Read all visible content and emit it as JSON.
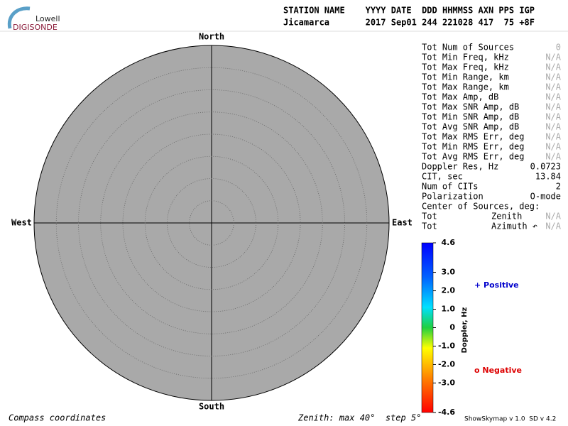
{
  "logo": {
    "top": "Lowell",
    "bottom": "DIGISONDE"
  },
  "header": {
    "columns": "STATION NAME    YYYY DATE  DDD HHMMSS AXN PPS IGP",
    "values": "Jicamarca       2017 Sep01 244 221028 417  75 +8F"
  },
  "plot": {
    "north": "North",
    "south": "South",
    "east": "East",
    "west": "West"
  },
  "stats": {
    "rows": [
      {
        "label": "Tot Num of Sources",
        "value": "0",
        "color": "#aaaaaa"
      },
      {
        "label": "Tot Min Freq, kHz",
        "value": "N/A",
        "color": "#aaaaaa"
      },
      {
        "label": "Tot Max Freq, kHz",
        "value": "N/A",
        "color": "#aaaaaa"
      },
      {
        "label": "Tot Min Range, km",
        "value": "N/A",
        "color": "#aaaaaa"
      },
      {
        "label": "Tot Max Range, km",
        "value": "N/A",
        "color": "#aaaaaa"
      },
      {
        "label": "Tot Max Amp, dB",
        "value": "N/A",
        "color": "#aaaaaa"
      },
      {
        "label": "Tot Max SNR Amp, dB",
        "value": "N/A",
        "color": "#aaaaaa"
      },
      {
        "label": "Tot Min SNR Amp, dB",
        "value": "N/A",
        "color": "#aaaaaa"
      },
      {
        "label": "Tot Avg SNR Amp, dB",
        "value": "N/A",
        "color": "#aaaaaa"
      },
      {
        "label": "Tot Max RMS Err, deg",
        "value": "N/A",
        "color": "#aaaaaa"
      },
      {
        "label": "Tot Min RMS Err, deg",
        "value": "N/A",
        "color": "#aaaaaa"
      },
      {
        "label": "Tot Avg RMS Err, deg",
        "value": "N/A",
        "color": "#aaaaaa"
      },
      {
        "label": "Doppler Res, Hz",
        "value": "0.0723",
        "color": "#000000"
      },
      {
        "label": "CIT, sec",
        "value": "13.84",
        "color": "#000000"
      },
      {
        "label": "Num of CITs",
        "value": "2",
        "color": "#000000"
      },
      {
        "label": "Polarization",
        "value": "O-mode",
        "color": "#000000"
      }
    ],
    "center_title": "Center of Sources, deg:",
    "center_rows": [
      {
        "label": "Tot",
        "name": "Zenith",
        "value": "N/A",
        "color": "#aaaaaa"
      },
      {
        "label": "Tot",
        "name": "Azimuth ↶",
        "value": "N/A",
        "color": "#aaaaaa"
      }
    ]
  },
  "colorbar": {
    "title": "Doppler, Hz",
    "range": [
      -4.6,
      4.6
    ],
    "ticks": [
      {
        "value": 4.6,
        "label": "4.6"
      },
      {
        "value": 3,
        "label": "3.0"
      },
      {
        "value": 2,
        "label": "2.0"
      },
      {
        "value": 1,
        "label": "1.0"
      },
      0,
      {
        "value": -1,
        "label": "-1.0"
      },
      {
        "value": -2,
        "label": "-2.0"
      },
      {
        "value": -3,
        "label": "-3.0"
      },
      {
        "value": -4.6,
        "label": "-4.6"
      }
    ]
  },
  "legend": {
    "positive": "+ Positive",
    "negative": "o Negative"
  },
  "footer": {
    "left": "Compass coordinates",
    "middle": "Zenith: max 40°  step 5°",
    "right": "ShowSkymap v 1.0  SD v 4.2"
  }
}
